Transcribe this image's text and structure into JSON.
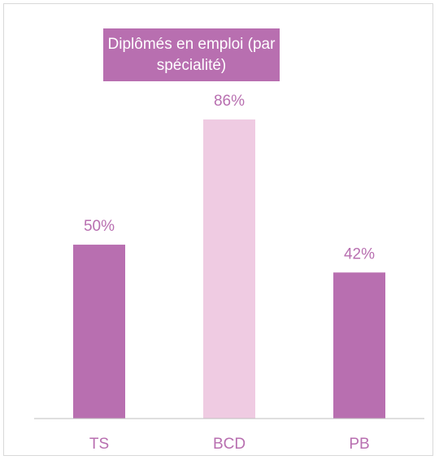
{
  "chart_data": {
    "type": "bar",
    "title": "Diplômés en emploi (par spécialité)",
    "categories": [
      "TS",
      "BCD",
      "PB"
    ],
    "values": [
      50,
      86,
      42
    ],
    "value_labels": [
      "50%",
      "86%",
      "42%"
    ],
    "colors": [
      "#b86fb0",
      "#efcbe2",
      "#b86fb0"
    ]
  }
}
